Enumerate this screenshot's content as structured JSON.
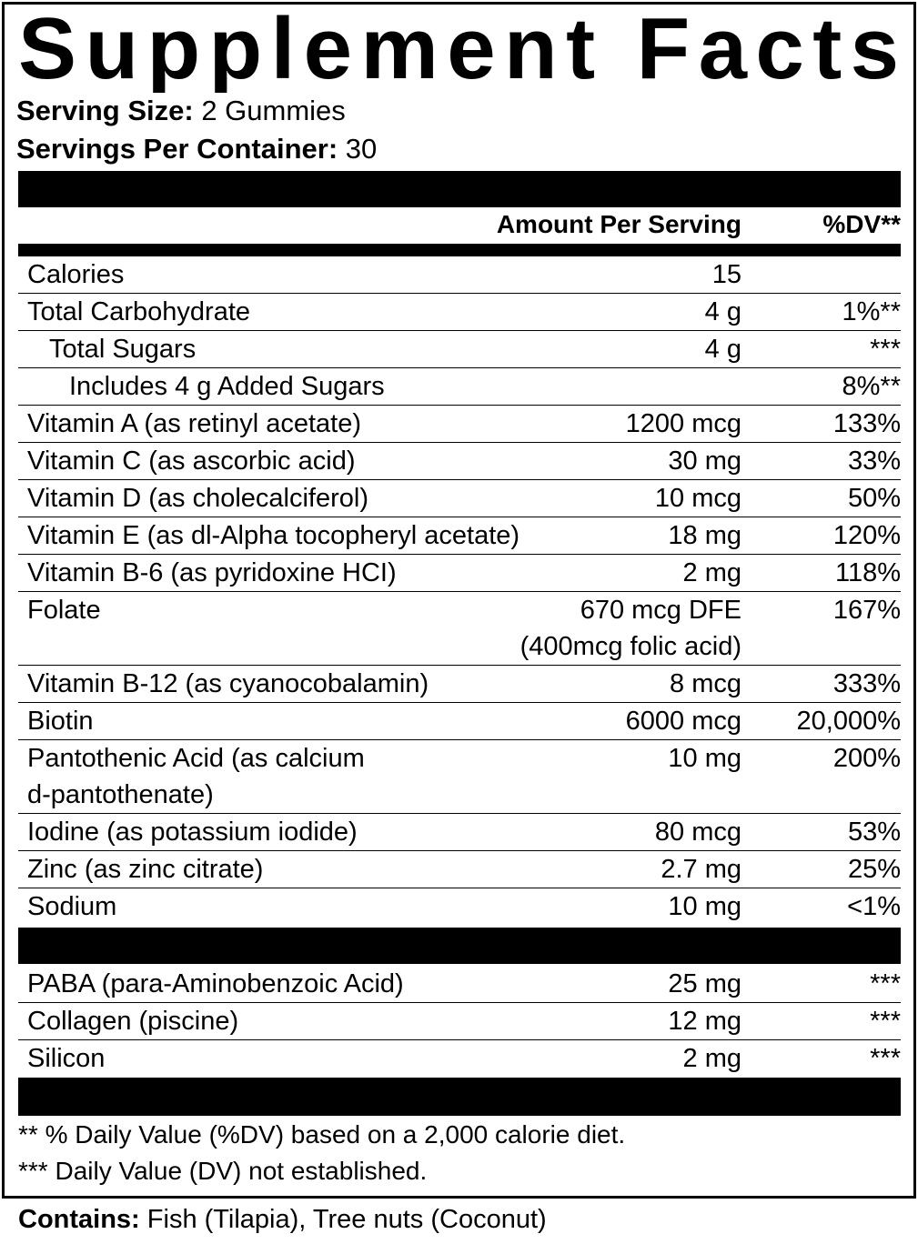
{
  "title": "Supplement Facts",
  "serving_size": {
    "label": "Serving Size:",
    "value": "2 Gummies"
  },
  "servings_per_container": {
    "label": "Servings Per Container:",
    "value": "30"
  },
  "column_headers": {
    "amount": "Amount Per Serving",
    "dv": "%DV**"
  },
  "nutrients": [
    {
      "name": "Calories",
      "amount": "15"
    },
    {
      "name": "Total Carbohydrate",
      "amount": "4 g",
      "dv": "1%**"
    },
    {
      "name": "Total Sugars",
      "amount": "4 g",
      "dv": "***"
    },
    {
      "name": "Includes 4 g Added Sugars",
      "dv": "8%**"
    },
    {
      "name": "Vitamin A (as retinyl acetate)",
      "amount": "1200 mcg",
      "dv": "133%"
    },
    {
      "name": "Vitamin C (as ascorbic acid)",
      "amount": "30 mg",
      "dv": "33%"
    },
    {
      "name": "Vitamin D (as cholecalciferol)",
      "amount": "10 mcg",
      "dv": "50%"
    },
    {
      "name": "Vitamin E (as dl-Alpha tocopheryl acetate)",
      "amount": "18 mg",
      "dv": "120%"
    },
    {
      "name": "Vitamin B-6 (as pyridoxine HCI)",
      "amount": "2 mg",
      "dv": "118%"
    },
    {
      "name": "Folate",
      "amount": [
        "670 mcg DFE",
        "(400mcg folic acid)"
      ],
      "dv": "167%"
    },
    {
      "name": "Vitamin B-12 (as cyanocobalamin)",
      "amount": "8 mcg",
      "dv": "333%"
    },
    {
      "name": "Biotin",
      "amount": "6000 mcg",
      "dv": "20,000%"
    },
    {
      "name": [
        "Pantothenic Acid (as calcium",
        "d-pantothenate)"
      ],
      "amount": "10 mg",
      "dv": "200%"
    },
    {
      "name": "Iodine (as potassium iodide)",
      "amount": "80 mcg",
      "dv": "53%"
    },
    {
      "name": "Zinc (as zinc citrate)",
      "amount": "2.7 mg",
      "dv": "25%"
    },
    {
      "name": "Sodium",
      "amount": "10 mg",
      "dv": "<1%"
    }
  ],
  "other_ingredients": [
    {
      "name": "PABA (para-Aminobenzoic Acid)",
      "amount": "25 mg",
      "dv": "***"
    },
    {
      "name": "Collagen (piscine)",
      "amount": "12 mg",
      "dv": "***"
    },
    {
      "name": "Silicon",
      "amount": "2 mg",
      "dv": "***"
    }
  ],
  "footnotes": [
    "** % Daily Value (%DV) based on a 2,000 calorie diet.",
    "*** Daily Value (DV) not established."
  ],
  "contains": {
    "label": "Contains:",
    "value": "Fish (Tilapia), Tree nuts (Coconut)"
  }
}
